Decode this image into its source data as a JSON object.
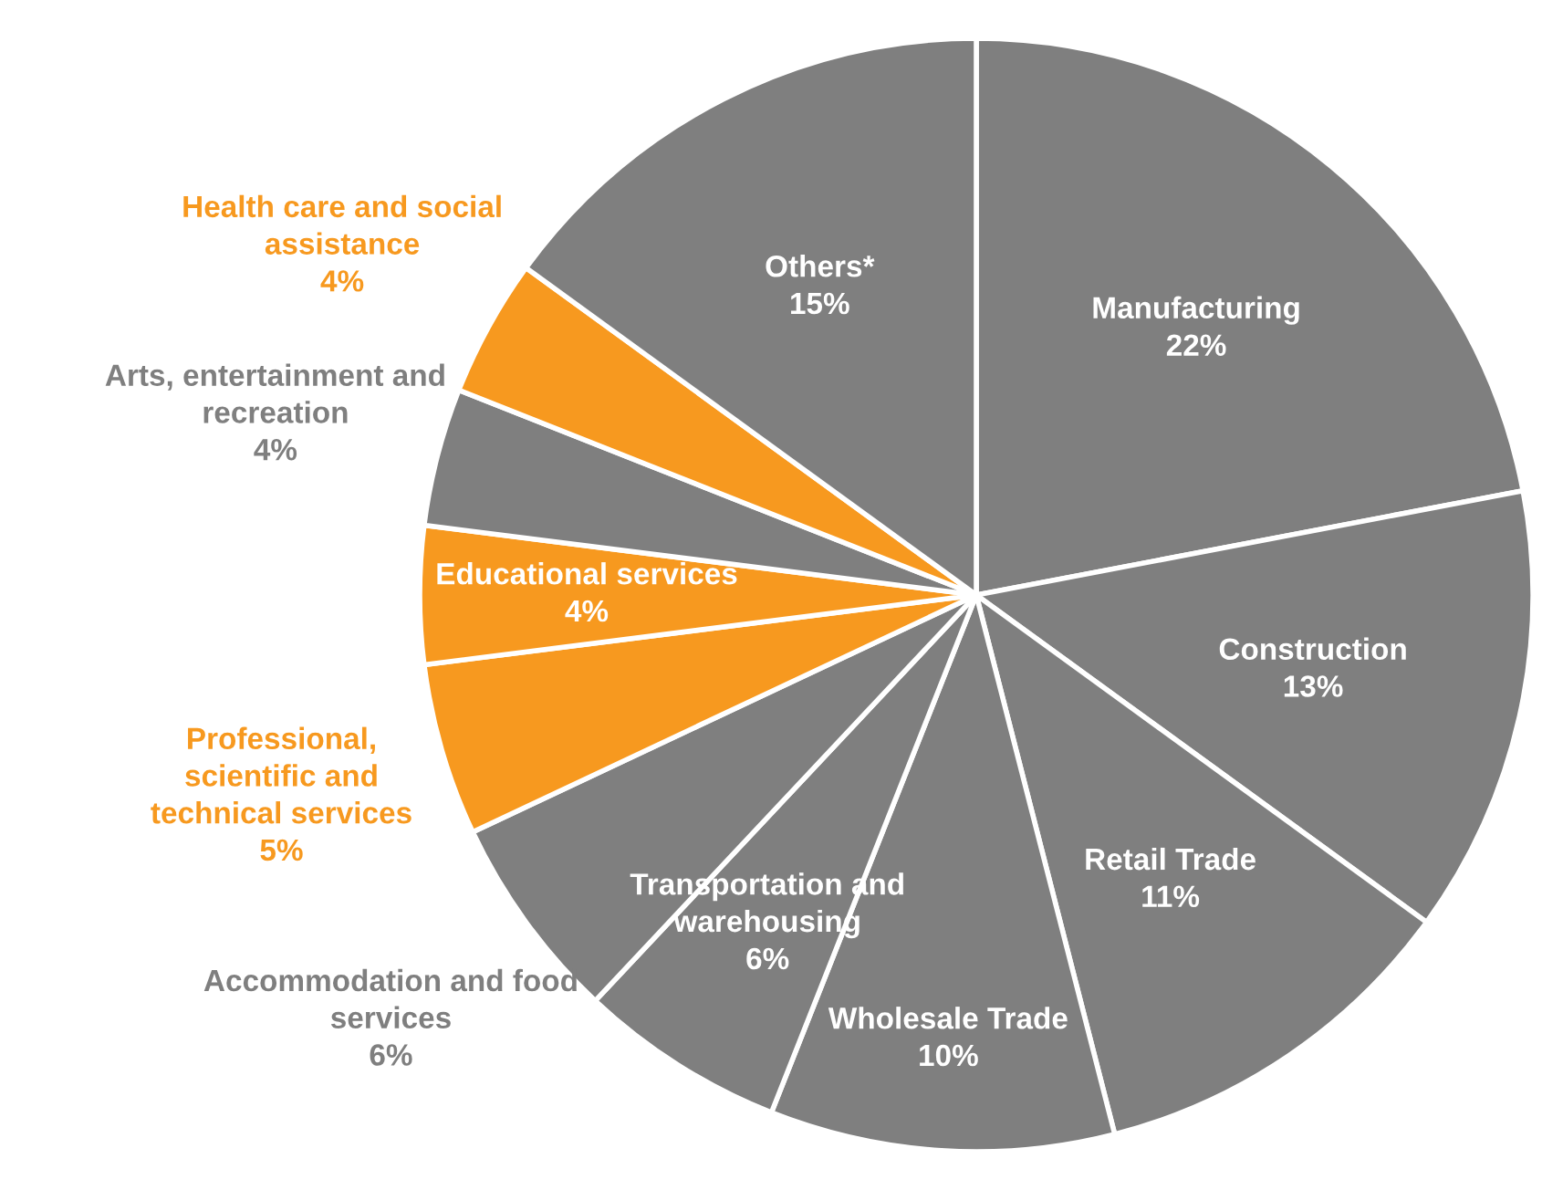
{
  "chart_data": {
    "type": "pie",
    "categories": [
      "Manufacturing",
      "Construction",
      "Retail Trade",
      "Wholesale Trade",
      "Transportation and warehousing",
      "Accommodation and food services",
      "Professional, scientific and technical services",
      "Educational services",
      "Arts, entertainment and recreation",
      "Health care and social assistance",
      "Others*"
    ],
    "values": [
      22,
      13,
      11,
      10,
      6,
      6,
      5,
      4,
      4,
      4,
      15
    ],
    "value_labels": [
      "22%",
      "13%",
      "11%",
      "10%",
      "6%",
      "6%",
      "5%",
      "4%",
      "4%",
      "4%",
      "15%"
    ],
    "colors": [
      "#7f7f7f",
      "#7f7f7f",
      "#7f7f7f",
      "#7f7f7f",
      "#7f7f7f",
      "#7f7f7f",
      "#f7991f",
      "#f7991f",
      "#7f7f7f",
      "#f7991f",
      "#7f7f7f"
    ],
    "legend": false
  }
}
